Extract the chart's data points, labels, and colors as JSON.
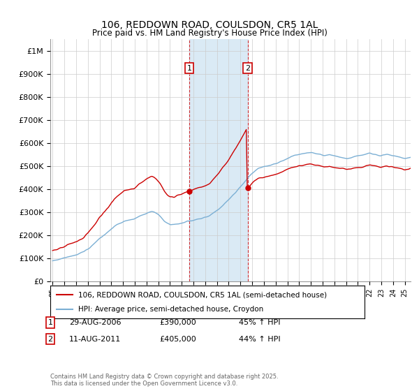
{
  "title": "106, REDDOWN ROAD, COULSDON, CR5 1AL",
  "subtitle": "Price paid vs. HM Land Registry's House Price Index (HPI)",
  "legend_line1": "106, REDDOWN ROAD, COULSDON, CR5 1AL (semi-detached house)",
  "legend_line2": "HPI: Average price, semi-detached house, Croydon",
  "footnote": "Contains HM Land Registry data © Crown copyright and database right 2025.\nThis data is licensed under the Open Government Licence v3.0.",
  "marker1_label": "1",
  "marker1_date": "29-AUG-2006",
  "marker1_price": "£390,000",
  "marker1_hpi": "45% ↑ HPI",
  "marker1_year": 2006.65,
  "marker1_value": 390000,
  "marker2_label": "2",
  "marker2_date": "11-AUG-2011",
  "marker2_price": "£405,000",
  "marker2_hpi": "44% ↑ HPI",
  "marker2_year": 2011.61,
  "marker2_value": 405000,
  "red_color": "#cc0000",
  "blue_color": "#7bafd4",
  "shade_color": "#daeaf5",
  "ylim": [
    0,
    1050000
  ],
  "yticks": [
    0,
    100000,
    200000,
    300000,
    400000,
    500000,
    600000,
    700000,
    800000,
    900000,
    1000000
  ],
  "ytick_labels": [
    "£0",
    "£100K",
    "£200K",
    "£300K",
    "£400K",
    "£500K",
    "£600K",
    "£700K",
    "£800K",
    "£900K",
    "£1M"
  ],
  "xlim_start": 1994.8,
  "xlim_end": 2025.5,
  "hpi_monthly": [
    90000,
    91000,
    92000,
    93000,
    94000,
    95000,
    96000,
    97000,
    98000,
    99000,
    100000,
    101000,
    102000,
    103000,
    104000,
    106000,
    107000,
    108000,
    109000,
    110000,
    111000,
    112000,
    113000,
    114000,
    115000,
    116000,
    118000,
    120000,
    122000,
    124000,
    126000,
    128000,
    130000,
    133000,
    136000,
    138000,
    140000,
    143000,
    146000,
    150000,
    154000,
    158000,
    162000,
    166000,
    170000,
    174000,
    178000,
    182000,
    186000,
    189000,
    192000,
    196000,
    200000,
    203000,
    206000,
    210000,
    213000,
    216000,
    220000,
    224000,
    228000,
    231000,
    234000,
    238000,
    241000,
    244000,
    247000,
    249000,
    251000,
    253000,
    255000,
    257000,
    259000,
    261000,
    262000,
    263000,
    264000,
    265000,
    266000,
    267000,
    268000,
    269000,
    270000,
    271000,
    273000,
    275000,
    277000,
    279000,
    281000,
    283000,
    285000,
    287000,
    289000,
    291000,
    293000,
    295000,
    297000,
    299000,
    300000,
    301000,
    302000,
    303000,
    303000,
    302000,
    301000,
    299000,
    297000,
    294000,
    291000,
    287000,
    283000,
    278000,
    273000,
    268000,
    263000,
    259000,
    256000,
    253000,
    251000,
    249000,
    247000,
    246000,
    246000,
    246000,
    246000,
    247000,
    248000,
    249000,
    250000,
    251000,
    252000,
    253000,
    254000,
    255000,
    256000,
    257000,
    258000,
    259000,
    260000,
    261000,
    262000,
    263000,
    264000,
    265000,
    266000,
    267000,
    268000,
    269000,
    270000,
    271000,
    272000,
    273000,
    274000,
    275000,
    276000,
    277000,
    278000,
    279000,
    281000,
    283000,
    285000,
    287000,
    290000,
    293000,
    296000,
    299000,
    302000,
    305000,
    308000,
    311000,
    314000,
    318000,
    322000,
    326000,
    330000,
    334000,
    338000,
    342000,
    346000,
    350000,
    354000,
    358000,
    363000,
    367000,
    372000,
    376000,
    381000,
    385000,
    390000,
    395000,
    400000,
    405000,
    410000,
    415000,
    420000,
    425000,
    430000,
    435000,
    440000,
    445000,
    450000,
    455000,
    460000,
    465000,
    469000,
    473000,
    477000,
    481000,
    484000,
    487000,
    490000,
    492000,
    493000,
    494000,
    495000,
    496000,
    497000,
    498000,
    499000,
    500000,
    501000,
    502000,
    503000,
    504000,
    505000,
    506000,
    507000,
    508000,
    510000,
    512000,
    514000,
    516000,
    518000,
    520000,
    522000,
    524000,
    526000,
    528000,
    530000,
    532000,
    534000,
    536000,
    538000,
    540000,
    542000,
    543000,
    544000,
    545000,
    546000,
    547000,
    548000,
    549000,
    550000,
    551000,
    552000,
    553000,
    554000,
    555000,
    556000,
    557000,
    558000,
    558000,
    558000,
    558000,
    558000,
    558000,
    557000,
    556000,
    555000,
    554000,
    553000,
    552000,
    551000,
    550000,
    549000,
    548000,
    547000,
    546000,
    545000,
    546000,
    547000,
    548000,
    549000,
    550000,
    549000,
    548000,
    547000,
    546000,
    545000,
    544000,
    543000,
    542000,
    541000,
    540000,
    539000,
    538000,
    537000,
    536000,
    535000,
    534000,
    533000,
    532000,
    533000,
    534000,
    535000,
    536000,
    537000,
    538000,
    539000,
    540000,
    541000,
    542000,
    543000,
    544000,
    545000,
    546000,
    547000,
    548000,
    549000,
    550000,
    551000,
    552000,
    553000,
    554000,
    555000,
    555000,
    554000,
    553000,
    552000,
    551000,
    550000,
    549000,
    548000,
    547000,
    546000,
    545000,
    546000,
    547000,
    548000,
    549000,
    550000,
    551000,
    551000,
    550000,
    549000,
    548000,
    547000,
    546000,
    545000,
    544000,
    543000,
    542000,
    541000,
    540000,
    539000,
    538000,
    537000,
    536000,
    535000,
    534000,
    533000,
    533000,
    534000,
    535000,
    536000,
    537000,
    538000,
    539000,
    540000,
    541000,
    542000,
    543000,
    544000,
    545000,
    546000,
    547000,
    548000,
    549000,
    550000
  ],
  "red_monthly_scale1": 1.4717,
  "red_monthly_scale2": 1.5577
}
